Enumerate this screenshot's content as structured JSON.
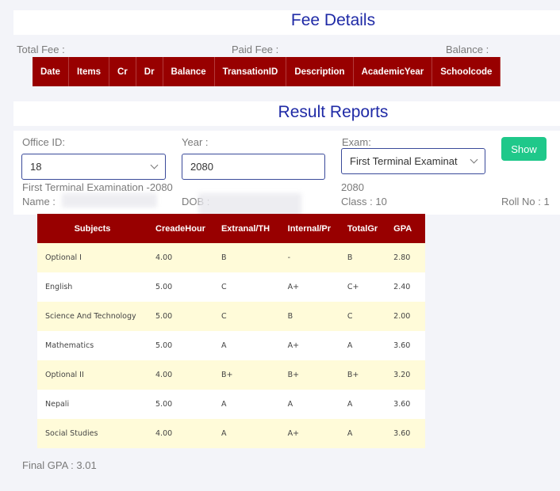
{
  "fee": {
    "title": "Fee Details",
    "total_label": "Total Fee :",
    "paid_label": "Paid Fee :",
    "balance_label": "Balance :",
    "columns": [
      "Date",
      "Items",
      "Cr",
      "Dr",
      "Balance",
      "TransationID",
      "Description",
      "AcademicYear",
      "Schoolcode"
    ]
  },
  "result": {
    "title": "Result Reports",
    "office_label": "Office ID:",
    "office_value": "18",
    "year_label": "Year :",
    "year_value": "2080",
    "exam_label": "Exam:",
    "exam_value": "First Terminal Examinat",
    "show_label": "Show",
    "exam_heading": "First Terminal Examination -2080",
    "exam_year": "2080",
    "name_label": "Name :",
    "dob_label": "DOB :",
    "class_label": "Class : 10",
    "roll_label": "Roll No : 1",
    "columns": [
      "Subjects",
      "CreadeHour",
      "Extranal/TH",
      "Internal/Pr",
      "TotalGr",
      "GPA"
    ],
    "rows": [
      [
        "Optional I",
        "4.00",
        "B",
        "-",
        "B",
        "2.80"
      ],
      [
        "English",
        "5.00",
        "C",
        "A+",
        "C+",
        "2.40"
      ],
      [
        "Science And Technology",
        "5.00",
        "C",
        "B",
        "C",
        "2.00"
      ],
      [
        "Mathematics",
        "5.00",
        "A",
        "A+",
        "A",
        "3.60"
      ],
      [
        "Optional II",
        "4.00",
        "B+",
        "B+",
        "B+",
        "3.20"
      ],
      [
        "Nepali",
        "5.00",
        "A",
        "A",
        "A",
        "3.60"
      ],
      [
        "Social Studies",
        "4.00",
        "A",
        "A+",
        "A",
        "3.60"
      ]
    ],
    "final_gpa": "Final GPA : 3.01"
  }
}
